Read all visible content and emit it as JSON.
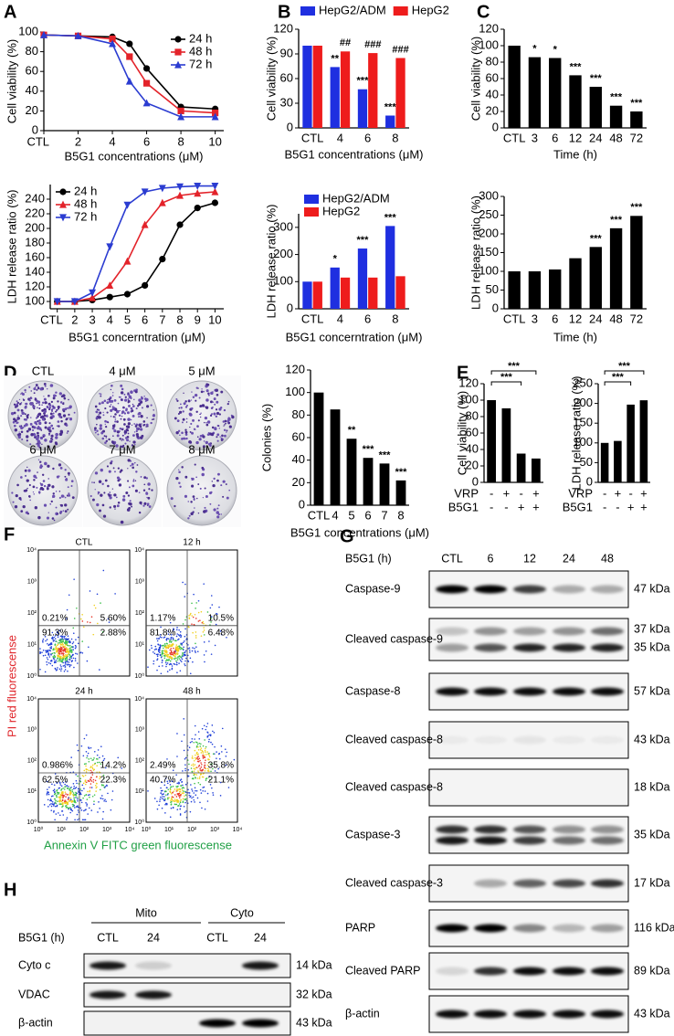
{
  "panel_labels": [
    "A",
    "B",
    "C",
    "D",
    "E",
    "F",
    "G",
    "H"
  ],
  "chart_data": [
    {
      "type": "line",
      "ylabel": "Cell viability (%)",
      "xlabel": "B5G1 concentrations (μM)",
      "x": [
        0,
        2,
        4,
        5,
        6,
        8,
        10
      ],
      "xlim": [
        0,
        10.5
      ],
      "xticks": [
        {
          "value": 0,
          "label": "CTL"
        },
        2,
        4,
        6,
        8,
        10
      ],
      "ylim": [
        0,
        100
      ],
      "yticks": [
        0,
        20,
        40,
        60,
        80,
        100
      ],
      "legend": "upper right",
      "series": [
        {
          "name": "24 h",
          "color": "#000000",
          "marker": "circle",
          "values": [
            97,
            96,
            95,
            88,
            63,
            24,
            22
          ]
        },
        {
          "name": "48 h",
          "color": "#e3232a",
          "marker": "square",
          "values": [
            97,
            96,
            93,
            75,
            48,
            20,
            18
          ]
        },
        {
          "name": "72 h",
          "color": "#2b3cd1",
          "marker": "triangle",
          "values": [
            97,
            96,
            88,
            50,
            28,
            14,
            14
          ]
        }
      ]
    },
    {
      "type": "line",
      "ylabel": "LDH release ratio (%)",
      "xlabel": "B5G1 concerntration (μM)",
      "x": [
        1,
        2,
        3,
        4,
        5,
        6,
        7,
        8,
        9,
        10
      ],
      "xlim": [
        0.6,
        10.5
      ],
      "xticks": [
        {
          "value": 1,
          "label": "CTL"
        },
        2,
        3,
        4,
        5,
        6,
        7,
        8,
        9,
        10
      ],
      "ylim": [
        90,
        260
      ],
      "yticks": [
        100,
        120,
        140,
        160,
        180,
        200,
        220,
        240
      ],
      "legend": "upper left",
      "series": [
        {
          "name": "24 h",
          "color": "#000000",
          "marker": "circle",
          "values": [
            100,
            100,
            102,
            106,
            110,
            122,
            158,
            205,
            228,
            235
          ]
        },
        {
          "name": "48 h",
          "color": "#e3232a",
          "marker": "triangle",
          "values": [
            100,
            100,
            105,
            122,
            155,
            205,
            235,
            245,
            248,
            250
          ]
        },
        {
          "name": "72 h",
          "color": "#2b3cd1",
          "marker": "triangle-down",
          "values": [
            100,
            100,
            112,
            175,
            232,
            250,
            255,
            257,
            258,
            258
          ]
        }
      ]
    },
    {
      "type": "bar",
      "ylabel": "Cell viability (%)",
      "xlabel": "B5G1 concentrations (μM)",
      "categories": [
        "CTL",
        "4",
        "6",
        "8"
      ],
      "ylim": [
        0,
        120
      ],
      "yticks": [
        0,
        30,
        60,
        90,
        120
      ],
      "legend": "top",
      "series": [
        {
          "name": "HepG2/ADM",
          "color": "#1f2fe0",
          "values": [
            100,
            74,
            47,
            15
          ],
          "stars": [
            null,
            "**",
            "***",
            "***"
          ]
        },
        {
          "name": "HepG2",
          "color": "#ee1c1c",
          "values": [
            100,
            93,
            91,
            85
          ],
          "stars": [
            null,
            "##",
            "###",
            "###"
          ]
        }
      ]
    },
    {
      "type": "bar",
      "ylabel": "LDH release ratio (%)",
      "xlabel": "B5G1 concerntration (μM)",
      "categories": [
        "CTL",
        "4",
        "6",
        "8"
      ],
      "ylim": [
        0,
        350
      ],
      "yticks": [
        0,
        100,
        200,
        300
      ],
      "legend": "upper left",
      "series": [
        {
          "name": "HepG2/ADM",
          "color": "#1f2fe0",
          "values": [
            100,
            152,
            222,
            305
          ],
          "stars": [
            null,
            "*",
            "***",
            "***"
          ]
        },
        {
          "name": "HepG2",
          "color": "#ee1c1c",
          "values": [
            100,
            115,
            115,
            120
          ]
        }
      ]
    },
    {
      "type": "bar",
      "ylabel": "Cell viability (%)",
      "xlabel": "Time (h)",
      "categories": [
        "CTL",
        "3",
        "6",
        "12",
        "24",
        "48",
        "72"
      ],
      "ylim": [
        0,
        120
      ],
      "yticks": [
        0,
        20,
        40,
        60,
        80,
        100,
        120
      ],
      "series": [
        {
          "color": "#000000",
          "values": [
            100,
            86,
            85,
            64,
            50,
            27,
            20
          ],
          "stars": [
            null,
            "*",
            "*",
            "***",
            "***",
            "***",
            "***"
          ]
        }
      ]
    },
    {
      "type": "bar",
      "ylabel": "LDH release ratio (%)",
      "xlabel": "Time (h)",
      "categories": [
        "CTL",
        "3",
        "6",
        "12",
        "24",
        "48",
        "72"
      ],
      "ylim": [
        0,
        300
      ],
      "yticks": [
        0,
        50,
        100,
        150,
        200,
        250,
        300
      ],
      "series": [
        {
          "color": "#000000",
          "values": [
            100,
            100,
            105,
            135,
            165,
            215,
            248
          ],
          "stars": [
            null,
            null,
            null,
            null,
            "***",
            "***",
            "***"
          ]
        }
      ]
    },
    {
      "type": "bar",
      "ylabel": "Colonies (%)",
      "xlabel": "B5G1 concentrations (μM)",
      "categories": [
        "CTL",
        "4",
        "5",
        "6",
        "7",
        "8"
      ],
      "ylim": [
        0,
        120
      ],
      "yticks": [
        0,
        20,
        40,
        60,
        80,
        100,
        120
      ],
      "series": [
        {
          "color": "#000000",
          "values": [
            100,
            85,
            59,
            42,
            37,
            22
          ],
          "stars": [
            null,
            null,
            "**",
            "***",
            "***",
            "***"
          ]
        }
      ]
    },
    {
      "type": "bar",
      "ylabel": "Cell viability (%)",
      "categories": [
        null,
        null,
        null,
        null
      ],
      "ylim": [
        0,
        120
      ],
      "yticks": [
        0,
        20,
        40,
        60,
        80,
        100,
        120
      ],
      "series": [
        {
          "color": "#000000",
          "values": [
            100,
            90,
            35,
            29
          ]
        }
      ],
      "brackets": [
        "***",
        "***"
      ],
      "conditions": [
        {
          "name": "VRP",
          "signs": [
            "-",
            "+",
            "-",
            "+"
          ]
        },
        {
          "name": "B5G1",
          "signs": [
            "-",
            "-",
            "+",
            "+"
          ]
        }
      ]
    },
    {
      "type": "bar",
      "ylabel": "LDH release ratio (%)",
      "categories": [
        null,
        null,
        null,
        null
      ],
      "ylim": [
        0,
        250
      ],
      "yticks": [
        0,
        50,
        100,
        150,
        200,
        250
      ],
      "series": [
        {
          "color": "#000000",
          "values": [
            100,
            105,
            197,
            208
          ]
        }
      ],
      "brackets": [
        "***",
        "***"
      ],
      "conditions": [
        {
          "name": "VRP",
          "signs": [
            "-",
            "+",
            "-",
            "+"
          ]
        },
        {
          "name": "B5G1",
          "signs": [
            "-",
            "-",
            "+",
            "+"
          ]
        }
      ]
    }
  ],
  "colony_plates": {
    "labels": [
      "CTL",
      "4 μM",
      "5 μM",
      "6 μM",
      "7 μM",
      "8 μM"
    ]
  },
  "flow_cytometry": {
    "ylabel": "PI red fluorescense",
    "xlabel": "Annexin V FITC green fluorescense",
    "ticks": [
      "10⁰",
      "10¹",
      "10²",
      "10³",
      "10⁴"
    ],
    "plots": [
      {
        "title": "CTL",
        "quadrants": [
          "0.21%",
          "5.60%",
          "91.3%",
          "2.88%"
        ]
      },
      {
        "title": "12 h",
        "quadrants": [
          "1.17%",
          "10.5%",
          "81.8%",
          "6.48%"
        ]
      },
      {
        "title": "24 h",
        "quadrants": [
          "0.986%",
          "14.2%",
          "62.5%",
          "22.3%"
        ]
      },
      {
        "title": "48 h",
        "quadrants": [
          "2.49%",
          "35.8%",
          "40.7%",
          "21.1%"
        ]
      }
    ]
  },
  "western_blot_g": {
    "treatment": "B5G1 (h)",
    "lanes": [
      "CTL",
      "6",
      "12",
      "24",
      "48"
    ],
    "rows": [
      {
        "label": "Caspase-9",
        "sizes": [
          "47 kDa"
        ]
      },
      {
        "label": "Cleaved caspase-9",
        "sizes": [
          "37 kDa",
          "35 kDa"
        ]
      },
      {
        "label": "Caspase-8",
        "sizes": [
          "57 kDa"
        ]
      },
      {
        "label": "Cleaved caspase-8",
        "sizes": [
          "43 kDa"
        ]
      },
      {
        "label": "Cleaved caspase-8",
        "sizes": [
          "18 kDa"
        ]
      },
      {
        "label": "Caspase-3",
        "sizes": [
          "35 kDa"
        ]
      },
      {
        "label": "Cleaved caspase-3",
        "sizes": [
          "17 kDa"
        ]
      },
      {
        "label": "PARP",
        "sizes": [
          "116 kDa"
        ]
      },
      {
        "label": "Cleaved PARP",
        "sizes": [
          "89 kDa"
        ]
      },
      {
        "label": "β-actin",
        "sizes": [
          "43 kDa"
        ]
      }
    ]
  },
  "western_blot_h": {
    "treatment": "B5G1 (h)",
    "groups": [
      "Mito",
      "Cyto"
    ],
    "lanes": [
      "CTL",
      "24",
      "CTL",
      "24"
    ],
    "rows": [
      {
        "label": "Cyto c",
        "sizes": [
          "14 kDa"
        ]
      },
      {
        "label": "VDAC",
        "sizes": [
          "32 kDa"
        ]
      },
      {
        "label": "β-actin",
        "sizes": [
          "43 kDa"
        ]
      }
    ]
  }
}
